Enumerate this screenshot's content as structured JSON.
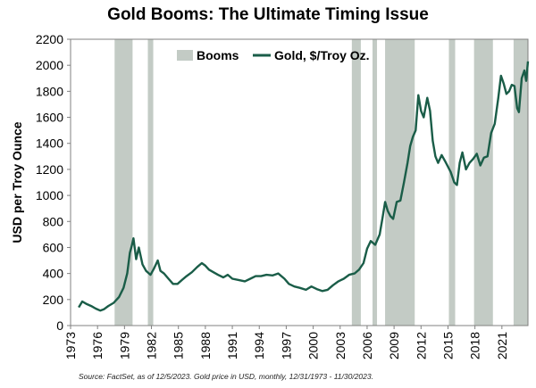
{
  "chart_data": {
    "type": "line",
    "title": "Gold Booms: The Ultimate Timing Issue",
    "xlabel": "",
    "ylabel": "USD per Troy Ounce",
    "ylim": [
      0,
      2200
    ],
    "yticks": [
      0,
      200,
      400,
      600,
      800,
      1000,
      1200,
      1400,
      1600,
      1800,
      2000,
      2200
    ],
    "xlim": [
      1973,
      2023.9
    ],
    "xticks": [
      1973,
      1976,
      1979,
      1982,
      1985,
      1988,
      1991,
      1994,
      1997,
      2000,
      2003,
      2006,
      2009,
      2012,
      2015,
      2018,
      2021
    ],
    "grid": false,
    "legend_position": "top-center",
    "legend": [
      {
        "label": "Booms",
        "kind": "band",
        "color": "#c3cbc5"
      },
      {
        "label": "Gold, $/Troy Oz.",
        "kind": "line",
        "color": "#1a5d48"
      }
    ],
    "booms": [
      [
        1977.9,
        1979.9
      ],
      [
        1981.6,
        1982.2
      ],
      [
        2004.3,
        2005.3
      ],
      [
        2006.6,
        2007.1
      ],
      [
        2008.0,
        2011.3
      ],
      [
        2015.1,
        2015.8
      ],
      [
        2017.9,
        2020.0
      ],
      [
        2022.3,
        2023.9
      ]
    ],
    "series": [
      {
        "name": "Gold, $/Troy Oz.",
        "color": "#1a5d48",
        "x": [
          1973.9,
          1974.3,
          1974.8,
          1975.3,
          1975.8,
          1976.3,
          1976.7,
          1977.2,
          1977.8,
          1978.4,
          1978.9,
          1979.3,
          1979.6,
          1979.8,
          1980.0,
          1980.3,
          1980.6,
          1981.0,
          1981.4,
          1981.9,
          1982.3,
          1982.7,
          1983.0,
          1983.4,
          1983.9,
          1984.4,
          1984.9,
          1985.4,
          1985.9,
          1986.5,
          1987.1,
          1987.6,
          1988.0,
          1988.4,
          1988.9,
          1989.4,
          1990.0,
          1990.5,
          1991.0,
          1991.7,
          1992.4,
          1993.0,
          1993.6,
          1994.2,
          1994.8,
          1995.5,
          1996.1,
          1996.8,
          1997.3,
          1997.9,
          1998.5,
          1999.2,
          1999.8,
          2000.4,
          2001.0,
          2001.6,
          2002.2,
          2002.8,
          2003.4,
          2004.0,
          2004.6,
          2005.1,
          2005.6,
          2006.0,
          2006.4,
          2006.9,
          2007.4,
          2007.7,
          2008.0,
          2008.3,
          2008.6,
          2008.9,
          2009.3,
          2009.7,
          2010.1,
          2010.5,
          2010.8,
          2011.1,
          2011.4,
          2011.7,
          2012.0,
          2012.3,
          2012.7,
          2013.0,
          2013.3,
          2013.6,
          2013.9,
          2014.3,
          2014.7,
          2015.0,
          2015.3,
          2015.7,
          2016.0,
          2016.3,
          2016.6,
          2017.0,
          2017.4,
          2017.8,
          2018.2,
          2018.6,
          2019.0,
          2019.4,
          2019.8,
          2020.2,
          2020.6,
          2020.9,
          2021.2,
          2021.5,
          2021.8,
          2022.1,
          2022.4,
          2022.7,
          2022.9,
          2023.2,
          2023.5,
          2023.7,
          2023.9
        ],
        "values": [
          140,
          185,
          165,
          150,
          130,
          115,
          125,
          150,
          175,
          220,
          290,
          400,
          560,
          610,
          670,
          510,
          600,
          470,
          420,
          390,
          440,
          500,
          420,
          400,
          360,
          320,
          320,
          350,
          380,
          410,
          450,
          480,
          460,
          430,
          410,
          390,
          370,
          390,
          360,
          350,
          340,
          360,
          380,
          380,
          390,
          385,
          400,
          360,
          320,
          300,
          290,
          275,
          300,
          280,
          265,
          275,
          310,
          340,
          360,
          390,
          400,
          430,
          480,
          590,
          650,
          620,
          700,
          820,
          950,
          880,
          840,
          820,
          950,
          960,
          1100,
          1250,
          1380,
          1450,
          1500,
          1770,
          1650,
          1600,
          1750,
          1650,
          1420,
          1300,
          1250,
          1310,
          1260,
          1220,
          1180,
          1100,
          1080,
          1250,
          1330,
          1200,
          1250,
          1280,
          1320,
          1230,
          1290,
          1300,
          1480,
          1550,
          1750,
          1920,
          1860,
          1780,
          1800,
          1850,
          1840,
          1670,
          1640,
          1900,
          1960,
          1880,
          2030
        ]
      }
    ],
    "source": "Source: FactSet, as of 12/5/2023. Gold price in USD, monthly, 12/31/1973 - 11/30/2023."
  }
}
